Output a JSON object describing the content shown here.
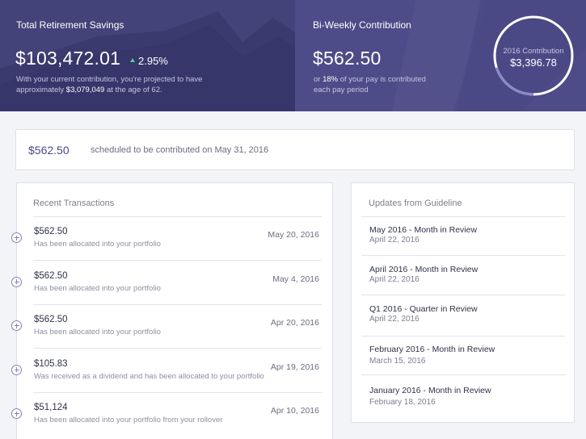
{
  "hero": {
    "savings": {
      "label": "Total Retirement Savings",
      "amount": "$103,472.01",
      "growth": "2.95%",
      "projection_prefix": "With your current contribution, you're projected to have approximately",
      "projection_amount": "$3,079,049",
      "projection_suffix": "at the age of 62."
    },
    "contribution": {
      "label": "Bi-Weekly Contribution",
      "amount": "$562.50",
      "percent_prefix": "or",
      "percent": "18%",
      "percent_suffix": "of your pay is contributed each pay period"
    },
    "yearly": {
      "label": "2016 Contribution",
      "amount": "$3,396.78",
      "progress_fraction": 0.2
    }
  },
  "scheduled": {
    "amount": "$562.50",
    "text": "scheduled to be contributed on May 31, 2016"
  },
  "transactions": {
    "title": "Recent Transactions",
    "items": [
      {
        "amount": "$562.50",
        "description": "Has been allocated into your portfolio",
        "date": "May 20, 2016"
      },
      {
        "amount": "$562.50",
        "description": "Has been allocated into your portfolio",
        "date": "May 4, 2016"
      },
      {
        "amount": "$562.50",
        "description": "Has been allocated into your portfolio",
        "date": "Apr 20, 2016"
      },
      {
        "amount": "$105.83",
        "description": "Was received as a dividend and has been allocated to your portfolio",
        "date": "Apr 19, 2016"
      },
      {
        "amount": "$51,124",
        "description": "Has been allocated into your portfolio from your rollover",
        "date": "Apr 10, 2016"
      }
    ]
  },
  "updates": {
    "title": "Updates from Guideline",
    "items": [
      {
        "title": "May 2016 - Month in Review",
        "date": "April 22, 2016"
      },
      {
        "title": "April 2016 - Month in Review",
        "date": "April 22, 2016"
      },
      {
        "title": "Q1 2016 - Quarter in Review",
        "date": "April 22, 2016"
      },
      {
        "title": "February 2016 - Month in Review",
        "date": "March 15, 2016"
      },
      {
        "title": "January 2016 - Month in Review",
        "date": "February 18, 2016"
      }
    ]
  },
  "colors": {
    "hero_left": "#43437a",
    "hero_right": "#4d4c88",
    "accent": "#4b4a86",
    "growth_up": "#4fd19a"
  }
}
